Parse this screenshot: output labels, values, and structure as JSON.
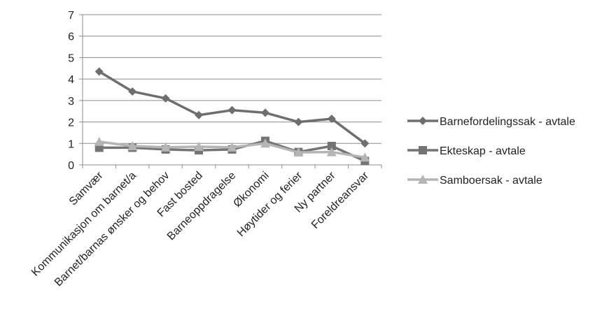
{
  "chart_data": {
    "type": "line",
    "categories": [
      "Samvær",
      "Kommunikasjon om barnet/a",
      "Barnet/barnas ønsker og behov",
      "Fast bosted",
      "Barneoppdragelse",
      "Økonomi",
      "Høytider og ferier",
      "Ny partner",
      "Foreldreansvar"
    ],
    "series": [
      {
        "name": "Barnefordelingssak - avtale",
        "values": [
          4.35,
          3.42,
          3.1,
          2.32,
          2.55,
          2.43,
          2.0,
          2.15,
          1.0
        ],
        "color": "#6e6e6e",
        "marker": "diamond"
      },
      {
        "name": "Ekteskap - avtale",
        "values": [
          0.8,
          0.8,
          0.72,
          0.68,
          0.72,
          1.12,
          0.6,
          0.88,
          0.18
        ],
        "color": "#747474",
        "marker": "square"
      },
      {
        "name": "Samboersak - avtale",
        "values": [
          1.08,
          0.88,
          0.82,
          0.85,
          0.82,
          1.0,
          0.58,
          0.6,
          0.35
        ],
        "color": "#b5b5b5",
        "marker": "triangle"
      }
    ],
    "ylim": [
      0,
      7
    ],
    "yticks": [
      0,
      1,
      2,
      3,
      4,
      5,
      6,
      7
    ],
    "grid": true,
    "legend_position": "right"
  }
}
